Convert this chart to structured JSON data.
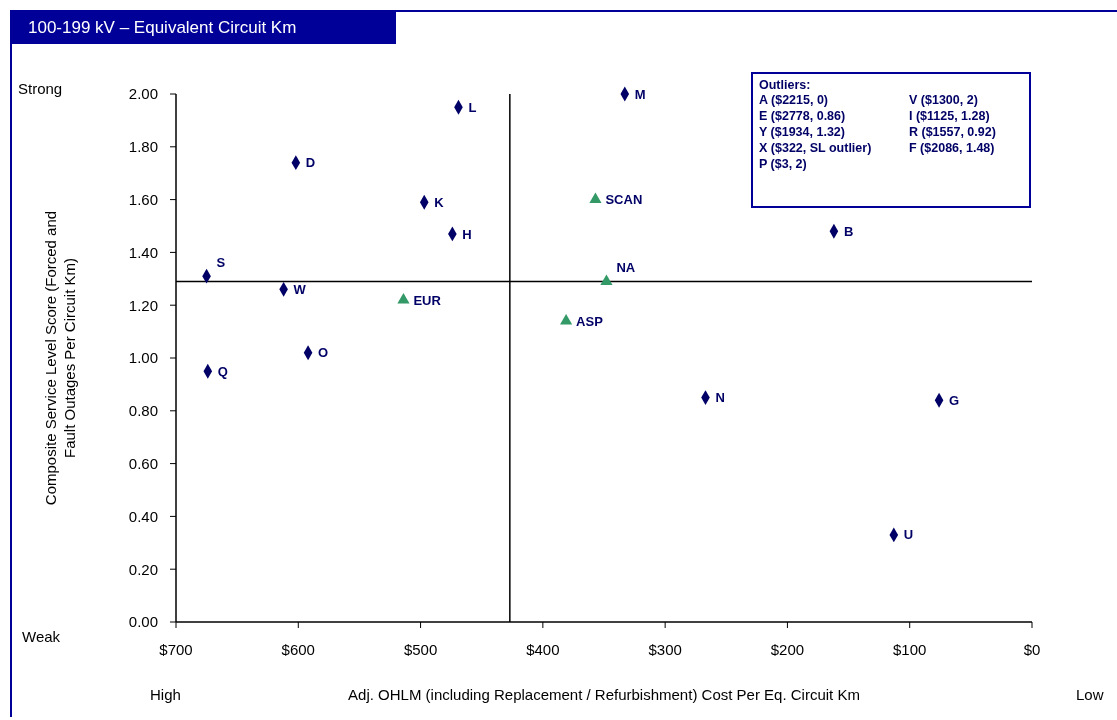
{
  "chart_data": {
    "type": "scatter",
    "title": "100-199 kV – Equivalent Circuit Km",
    "xlabel": "Adj. OHLM (including Replacement / Refurbishment) Cost Per Eq. Circuit Km",
    "ylabel": "Composite Service Level Score (Forced and Fault Outages Per Circuit Km)",
    "series": [
      {
        "color": "#000066",
        "marker": "diamond",
        "x": [
          469,
          333,
          602,
          497,
          474,
          675,
          612,
          592,
          674,
          162,
          267,
          76,
          113
        ],
        "values": [
          1.95,
          2.0,
          1.74,
          1.59,
          1.47,
          1.31,
          1.26,
          1.02,
          0.95,
          1.48,
          0.85,
          0.84,
          0.33
        ]
      },
      {
        "color": "#339966",
        "marker": "triangle",
        "x": [
          514,
          357,
          348,
          381
        ],
        "values": [
          1.22,
          1.6,
          1.29,
          1.14
        ]
      }
    ],
    "xlim": [
      700,
      0
    ],
    "xticks": [
      {
        "value": 700,
        "label": "$700"
      },
      {
        "value": 600,
        "label": "$600"
      },
      {
        "value": 500,
        "label": "$500"
      },
      {
        "value": 400,
        "label": "$400"
      },
      {
        "value": 300,
        "label": "$300"
      },
      {
        "value": 200,
        "label": "$200"
      },
      {
        "value": 100,
        "label": "$100"
      },
      {
        "value": 0,
        "label": "$0"
      }
    ],
    "ylim": [
      0,
      2
    ],
    "yticks": [
      {
        "value": 0,
        "label": "0.00"
      },
      {
        "value": 0.2,
        "label": "0.20"
      },
      {
        "value": 0.4,
        "label": "0.40"
      },
      {
        "value": 0.6,
        "label": "0.60"
      },
      {
        "value": 0.8,
        "label": "0.80"
      },
      {
        "value": 1,
        "label": "1.00"
      },
      {
        "value": 1.2,
        "label": "1.20"
      },
      {
        "value": 1.4,
        "label": "1.40"
      },
      {
        "value": 1.6,
        "label": "1.60"
      },
      {
        "value": 1.8,
        "label": "1.80"
      },
      {
        "value": 2,
        "label": "2.00"
      }
    ],
    "ref_lines": [
      {
        "axis": "y",
        "value": 1.29,
        "color": "#000000"
      },
      {
        "axis": "x",
        "value": 427,
        "color": "#000000"
      }
    ],
    "grid": false,
    "legend": false,
    "annotations": [
      "Strong",
      "Weak",
      "High",
      "Low",
      "Outliers:",
      "A ($2215, 0)",
      "V ($1300, 2)",
      "E ($2778, 0.86)",
      "I ($1125, 1.28)",
      "Y ($1934, 1.32)",
      "R ($1557, 0.92)",
      "X ($322, SL outlier)",
      "F ($2086, 1.48)",
      "P ($3, 2)",
      {
        "text": "L",
        "x": 469,
        "y": 1.95
      },
      {
        "text": "M",
        "x": 333,
        "y": 2.0
      },
      {
        "text": "D",
        "x": 602,
        "y": 1.74
      },
      {
        "text": "K",
        "x": 497,
        "y": 1.59
      },
      {
        "text": "H",
        "x": 474,
        "y": 1.47
      },
      {
        "text": "S",
        "x": 675,
        "y": 1.31
      },
      {
        "text": "W",
        "x": 612,
        "y": 1.26
      },
      {
        "text": "O",
        "x": 592,
        "y": 1.02
      },
      {
        "text": "Q",
        "x": 674,
        "y": 0.95
      },
      {
        "text": "B",
        "x": 162,
        "y": 1.48
      },
      {
        "text": "N",
        "x": 267,
        "y": 0.85
      },
      {
        "text": "G",
        "x": 76,
        "y": 0.84
      },
      {
        "text": "U",
        "x": 113,
        "y": 0.33
      },
      {
        "text": "EUR",
        "x": 514,
        "y": 1.22
      },
      {
        "text": "SCAN",
        "x": 357,
        "y": 1.6
      },
      {
        "text": "NA",
        "x": 348,
        "y": 1.29
      },
      {
        "text": "ASP",
        "x": 381,
        "y": 1.14
      }
    ]
  }
}
